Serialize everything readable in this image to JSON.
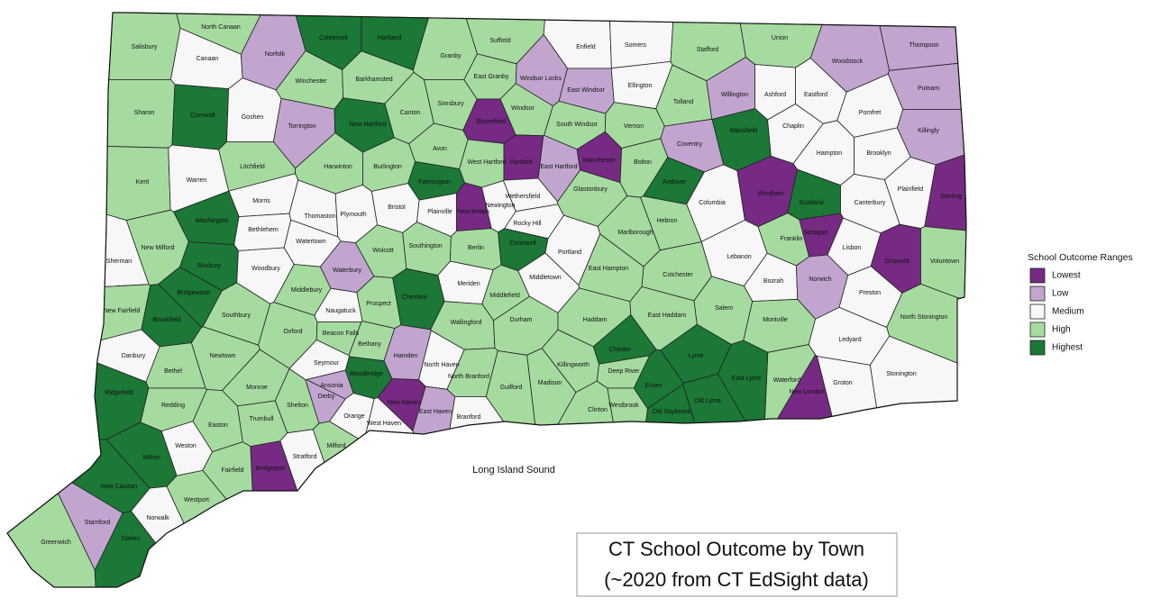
{
  "title": [
    "CT School Outcome by Town",
    "(~2020 from CT EdSight data)"
  ],
  "annotation": "Long Island Sound",
  "legend": {
    "title": "School Outcome Ranges",
    "items": [
      {
        "name": "Lowest",
        "color": "#762a83"
      },
      {
        "name": "Low",
        "color": "#c2a5cf"
      },
      {
        "name": "Medium",
        "color": "#f7f7f7"
      },
      {
        "name": "High",
        "color": "#a6dba0"
      },
      {
        "name": "Highest",
        "color": "#1b7837"
      }
    ]
  },
  "towns": [
    {
      "name": "Salisbury",
      "outcome": "High"
    },
    {
      "name": "North Canaan",
      "outcome": "High"
    },
    {
      "name": "Canaan",
      "outcome": "Medium"
    },
    {
      "name": "Norfolk",
      "outcome": "Low"
    },
    {
      "name": "Colebrook",
      "outcome": "Highest"
    },
    {
      "name": "Hartland",
      "outcome": "Highest"
    },
    {
      "name": "Granby",
      "outcome": "High"
    },
    {
      "name": "Suffield",
      "outcome": "High"
    },
    {
      "name": "Enfield",
      "outcome": "Medium"
    },
    {
      "name": "Somers",
      "outcome": "Medium"
    },
    {
      "name": "Stafford",
      "outcome": "High"
    },
    {
      "name": "Union",
      "outcome": "High"
    },
    {
      "name": "Woodstock",
      "outcome": "Low"
    },
    {
      "name": "Thompson",
      "outcome": "Low"
    },
    {
      "name": "Sharon",
      "outcome": "High"
    },
    {
      "name": "Cornwall",
      "outcome": "Highest"
    },
    {
      "name": "Goshen",
      "outcome": "Medium"
    },
    {
      "name": "Winchester",
      "outcome": "High"
    },
    {
      "name": "Barkhamsted",
      "outcome": "High"
    },
    {
      "name": "Torrington",
      "outcome": "Low"
    },
    {
      "name": "New Hartford",
      "outcome": "Highest"
    },
    {
      "name": "Canton",
      "outcome": "High"
    },
    {
      "name": "Simsbury",
      "outcome": "High"
    },
    {
      "name": "East Granby",
      "outcome": "High"
    },
    {
      "name": "Windsor Locks",
      "outcome": "Low"
    },
    {
      "name": "Windsor",
      "outcome": "High"
    },
    {
      "name": "Bloomfield",
      "outcome": "Lowest"
    },
    {
      "name": "East Windsor",
      "outcome": "Low"
    },
    {
      "name": "Ellington",
      "outcome": "Medium"
    },
    {
      "name": "South Windsor",
      "outcome": "High"
    },
    {
      "name": "Tolland",
      "outcome": "High"
    },
    {
      "name": "Vernon",
      "outcome": "High"
    },
    {
      "name": "Willington",
      "outcome": "Low"
    },
    {
      "name": "Ashford",
      "outcome": "Medium"
    },
    {
      "name": "Eastford",
      "outcome": "Medium"
    },
    {
      "name": "Pomfret",
      "outcome": "Medium"
    },
    {
      "name": "Putnam",
      "outcome": "Low"
    },
    {
      "name": "Killingly",
      "outcome": "Low"
    },
    {
      "name": "Mansfield",
      "outcome": "Highest"
    },
    {
      "name": "Coventry",
      "outcome": "Low"
    },
    {
      "name": "Chaplin",
      "outcome": "Medium"
    },
    {
      "name": "Hampton",
      "outcome": "Medium"
    },
    {
      "name": "Brooklyn",
      "outcome": "Medium"
    },
    {
      "name": "Kent",
      "outcome": "High"
    },
    {
      "name": "Warren",
      "outcome": "Medium"
    },
    {
      "name": "Litchfield",
      "outcome": "High"
    },
    {
      "name": "Harwinton",
      "outcome": "High"
    },
    {
      "name": "Burlington",
      "outcome": "High"
    },
    {
      "name": "Avon",
      "outcome": "High"
    },
    {
      "name": "Farmington",
      "outcome": "Highest"
    },
    {
      "name": "West Hartford",
      "outcome": "High"
    },
    {
      "name": "Hartford",
      "outcome": "Lowest"
    },
    {
      "name": "East Hartford",
      "outcome": "Low"
    },
    {
      "name": "Manchester",
      "outcome": "Lowest"
    },
    {
      "name": "Bolton",
      "outcome": "High"
    },
    {
      "name": "Andover",
      "outcome": "Highest"
    },
    {
      "name": "Windham",
      "outcome": "Lowest"
    },
    {
      "name": "Scotland",
      "outcome": "Highest"
    },
    {
      "name": "Canterbury",
      "outcome": "Medium"
    },
    {
      "name": "Plainfield",
      "outcome": "Medium"
    },
    {
      "name": "Sterling",
      "outcome": "Lowest"
    },
    {
      "name": "Morris",
      "outcome": "Medium"
    },
    {
      "name": "Washington",
      "outcome": "Highest"
    },
    {
      "name": "Bethlehem",
      "outcome": "Medium"
    },
    {
      "name": "Thomaston",
      "outcome": "Medium"
    },
    {
      "name": "Plymouth",
      "outcome": "Medium"
    },
    {
      "name": "Bristol",
      "outcome": "Medium"
    },
    {
      "name": "Plainville",
      "outcome": "Medium"
    },
    {
      "name": "New Britain",
      "outcome": "Lowest"
    },
    {
      "name": "Newington",
      "outcome": "Medium"
    },
    {
      "name": "Wethersfield",
      "outcome": "Medium"
    },
    {
      "name": "Rocky Hill",
      "outcome": "Medium"
    },
    {
      "name": "Glastonbury",
      "outcome": "High"
    },
    {
      "name": "Hebron",
      "outcome": "High"
    },
    {
      "name": "Columbia",
      "outcome": "Medium"
    },
    {
      "name": "Lebanon",
      "outcome": "Medium"
    },
    {
      "name": "Franklin",
      "outcome": "High"
    },
    {
      "name": "Sprague",
      "outcome": "Lowest"
    },
    {
      "name": "Lisbon",
      "outcome": "Medium"
    },
    {
      "name": "Griswold",
      "outcome": "Lowest"
    },
    {
      "name": "Voluntown",
      "outcome": "High"
    },
    {
      "name": "Sherman",
      "outcome": "Medium"
    },
    {
      "name": "New Milford",
      "outcome": "High"
    },
    {
      "name": "Roxbury",
      "outcome": "Highest"
    },
    {
      "name": "Woodbury",
      "outcome": "Medium"
    },
    {
      "name": "Watertown",
      "outcome": "Medium"
    },
    {
      "name": "Wolcott",
      "outcome": "High"
    },
    {
      "name": "Southington",
      "outcome": "High"
    },
    {
      "name": "Berlin",
      "outcome": "High"
    },
    {
      "name": "Cromwell",
      "outcome": "Highest"
    },
    {
      "name": "Portland",
      "outcome": "Medium"
    },
    {
      "name": "Marlborough",
      "outcome": "High"
    },
    {
      "name": "Colchester",
      "outcome": "High"
    },
    {
      "name": "East Hampton",
      "outcome": "High"
    },
    {
      "name": "Bozrah",
      "outcome": "Medium"
    },
    {
      "name": "Norwich",
      "outcome": "Low"
    },
    {
      "name": "Preston",
      "outcome": "Medium"
    },
    {
      "name": "Waterbury",
      "outcome": "Low"
    },
    {
      "name": "Middlebury",
      "outcome": "High"
    },
    {
      "name": "Cheshire",
      "outcome": "Highest"
    },
    {
      "name": "Meriden",
      "outcome": "Medium"
    },
    {
      "name": "Middlefield",
      "outcome": "High"
    },
    {
      "name": "Middletown",
      "outcome": "Medium"
    },
    {
      "name": "Bridgewater",
      "outcome": "Highest"
    },
    {
      "name": "Brookfield",
      "outcome": "Highest"
    },
    {
      "name": "New Fairfield",
      "outcome": "High"
    },
    {
      "name": "Southbury",
      "outcome": "High"
    },
    {
      "name": "Naugatuck",
      "outcome": "Medium"
    },
    {
      "name": "Prospect",
      "outcome": "High"
    },
    {
      "name": "Wallingford",
      "outcome": "High"
    },
    {
      "name": "Durham",
      "outcome": "High"
    },
    {
      "name": "Haddam",
      "outcome": "High"
    },
    {
      "name": "East Haddam",
      "outcome": "High"
    },
    {
      "name": "Salem",
      "outcome": "High"
    },
    {
      "name": "Montville",
      "outcome": "High"
    },
    {
      "name": "North Stonington",
      "outcome": "High"
    },
    {
      "name": "Oxford",
      "outcome": "High"
    },
    {
      "name": "Beacon Falls",
      "outcome": "High"
    },
    {
      "name": "Bethany",
      "outcome": "High"
    },
    {
      "name": "Hamden",
      "outcome": "Low"
    },
    {
      "name": "North Haven",
      "outcome": "Medium"
    },
    {
      "name": "North Branford",
      "outcome": "High"
    },
    {
      "name": "Danbury",
      "outcome": "Medium"
    },
    {
      "name": "Bethel",
      "outcome": "High"
    },
    {
      "name": "Newtown",
      "outcome": "High"
    },
    {
      "name": "Seymour",
      "outcome": "Medium"
    },
    {
      "name": "Ansonia",
      "outcome": "Low"
    },
    {
      "name": "Derby",
      "outcome": "Low"
    },
    {
      "name": "Woodbridge",
      "outcome": "Highest"
    },
    {
      "name": "Chester",
      "outcome": "Highest"
    },
    {
      "name": "Deep River",
      "outcome": "High"
    },
    {
      "name": "Killingworth",
      "outcome": "High"
    },
    {
      "name": "Lyme",
      "outcome": "Highest"
    },
    {
      "name": "Ledyard",
      "outcome": "Medium"
    },
    {
      "name": "Stonington",
      "outcome": "Medium"
    },
    {
      "name": "Groton",
      "outcome": "Medium"
    },
    {
      "name": "New London",
      "outcome": "Lowest"
    },
    {
      "name": "Waterford",
      "outcome": "High"
    },
    {
      "name": "East Lyme",
      "outcome": "Highest"
    },
    {
      "name": "Old Lyme",
      "outcome": "Highest"
    },
    {
      "name": "Essex",
      "outcome": "Highest"
    },
    {
      "name": "Old Saybrook",
      "outcome": "Highest"
    },
    {
      "name": "Westbrook",
      "outcome": "High"
    },
    {
      "name": "Clinton",
      "outcome": "High"
    },
    {
      "name": "Madison",
      "outcome": "High"
    },
    {
      "name": "Guilford",
      "outcome": "High"
    },
    {
      "name": "Branford",
      "outcome": "Medium"
    },
    {
      "name": "East Haven",
      "outcome": "Low"
    },
    {
      "name": "New Haven",
      "outcome": "Lowest"
    },
    {
      "name": "West Haven",
      "outcome": "Medium"
    },
    {
      "name": "Orange",
      "outcome": "Medium"
    },
    {
      "name": "Milford",
      "outcome": "High"
    },
    {
      "name": "Stratford",
      "outcome": "Medium"
    },
    {
      "name": "Bridgeport",
      "outcome": "Lowest"
    },
    {
      "name": "Monroe",
      "outcome": "High"
    },
    {
      "name": "Shelton",
      "outcome": "High"
    },
    {
      "name": "Trumbull",
      "outcome": "High"
    },
    {
      "name": "Easton",
      "outcome": "High"
    },
    {
      "name": "Redding",
      "outcome": "High"
    },
    {
      "name": "Ridgefield",
      "outcome": "Highest"
    },
    {
      "name": "Wilton",
      "outcome": "Highest"
    },
    {
      "name": "Weston",
      "outcome": "Medium"
    },
    {
      "name": "Fairfield",
      "outcome": "High"
    },
    {
      "name": "Westport",
      "outcome": "High"
    },
    {
      "name": "New Canaan",
      "outcome": "Highest"
    },
    {
      "name": "Norwalk",
      "outcome": "Medium"
    },
    {
      "name": "Darien",
      "outcome": "Highest"
    },
    {
      "name": "Stamford",
      "outcome": "Low"
    },
    {
      "name": "Greenwich",
      "outcome": "High"
    }
  ]
}
